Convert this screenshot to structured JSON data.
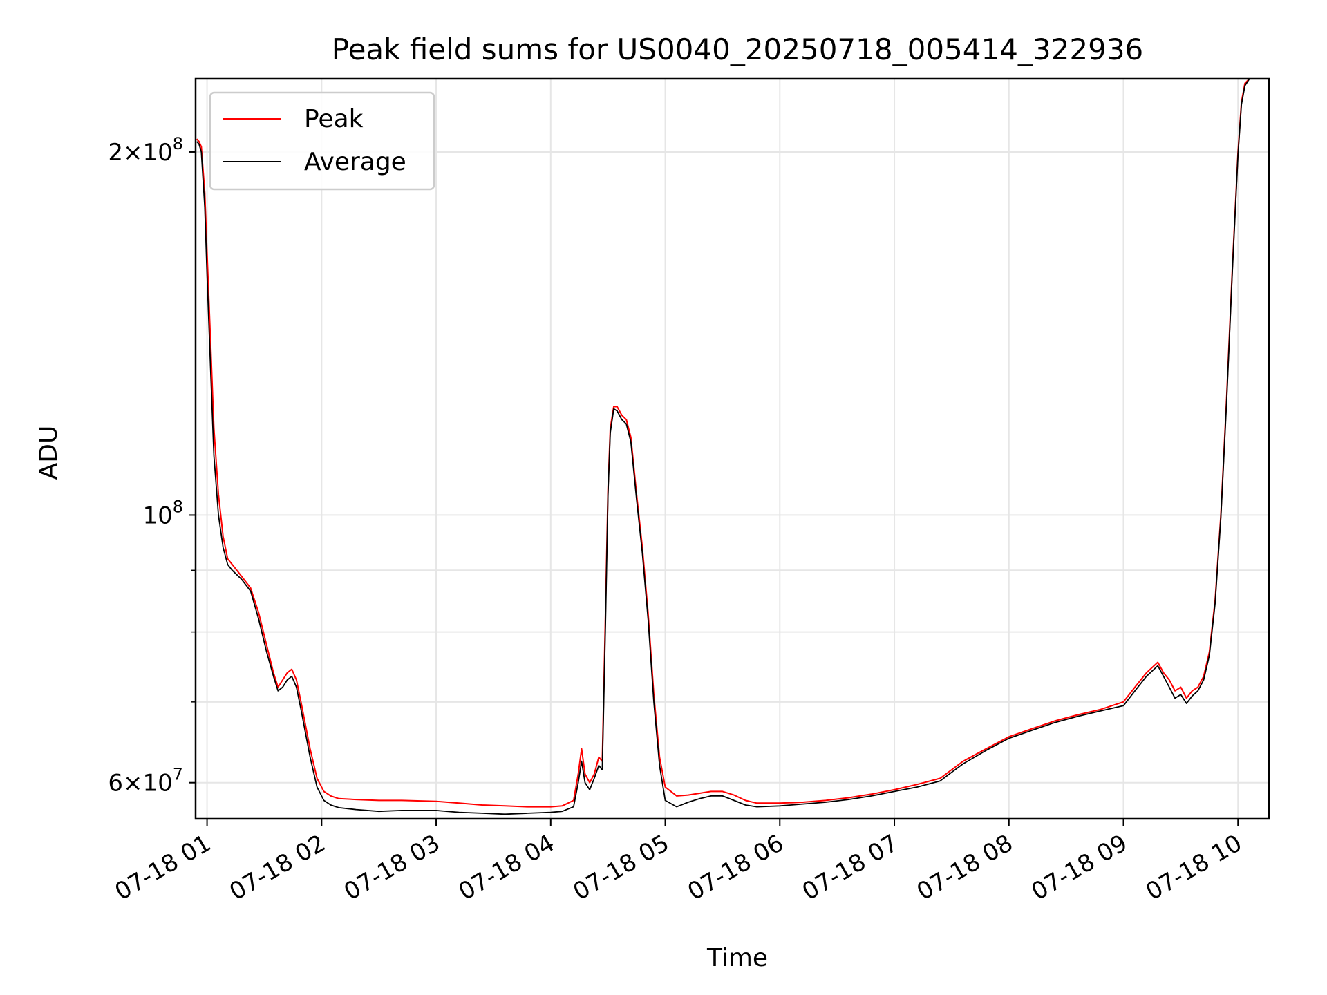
{
  "chart_data": {
    "type": "line",
    "title": "Peak field sums for US0040_20250718_005414_322936",
    "xlabel": "Time",
    "ylabel": "ADU",
    "yscale": "log",
    "grid": true,
    "legend_position": "upper-left",
    "x_unit": "hours (07-18)",
    "xlim": [
      0.9,
      10.27
    ],
    "ylim": [
      56000000,
      230000000
    ],
    "x_ticks": [
      {
        "value": 1,
        "label": "07-18 01"
      },
      {
        "value": 2,
        "label": "07-18 02"
      },
      {
        "value": 3,
        "label": "07-18 03"
      },
      {
        "value": 4,
        "label": "07-18 04"
      },
      {
        "value": 5,
        "label": "07-18 05"
      },
      {
        "value": 6,
        "label": "07-18 06"
      },
      {
        "value": 7,
        "label": "07-18 07"
      },
      {
        "value": 8,
        "label": "07-18 08"
      },
      {
        "value": 9,
        "label": "07-18 09"
      },
      {
        "value": 10,
        "label": "07-18 10"
      }
    ],
    "y_major_ticks": [
      {
        "value": 60000000,
        "mantissa": "6",
        "exponent": "7"
      },
      {
        "value": 100000000,
        "mantissa": "",
        "exponent": "8"
      },
      {
        "value": 200000000,
        "mantissa": "2",
        "exponent": "8"
      }
    ],
    "y_minor_ticks": [
      70000000,
      80000000,
      90000000
    ],
    "series": [
      {
        "name": "Peak",
        "color": "#ff0000",
        "x": [
          0.91,
          0.93,
          0.95,
          0.98,
          1.0,
          1.03,
          1.06,
          1.1,
          1.14,
          1.18,
          1.22,
          1.3,
          1.38,
          1.45,
          1.52,
          1.58,
          1.62,
          1.66,
          1.7,
          1.74,
          1.78,
          1.82,
          1.9,
          1.96,
          2.02,
          2.08,
          2.15,
          2.3,
          2.5,
          2.7,
          3.0,
          3.2,
          3.4,
          3.6,
          3.8,
          4.0,
          4.1,
          4.2,
          4.24,
          4.27,
          4.3,
          4.34,
          4.38,
          4.42,
          4.45,
          4.48,
          4.5,
          4.52,
          4.55,
          4.58,
          4.62,
          4.66,
          4.7,
          4.75,
          4.8,
          4.85,
          4.9,
          4.95,
          5.0,
          5.1,
          5.2,
          5.3,
          5.4,
          5.5,
          5.6,
          5.7,
          5.8,
          6.0,
          6.2,
          6.4,
          6.6,
          6.8,
          7.0,
          7.2,
          7.4,
          7.5,
          7.6,
          7.8,
          8.0,
          8.2,
          8.4,
          8.6,
          8.8,
          9.0,
          9.1,
          9.2,
          9.3,
          9.35,
          9.4,
          9.45,
          9.5,
          9.55,
          9.6,
          9.65,
          9.7,
          9.75,
          9.8,
          9.85,
          9.9,
          9.95,
          10.0,
          10.03,
          10.06,
          10.1
        ],
        "values": [
          205000000,
          204000000,
          202000000,
          185000000,
          165000000,
          140000000,
          118000000,
          104000000,
          96000000,
          92000000,
          91000000,
          89000000,
          87000000,
          83000000,
          78000000,
          74000000,
          72000000,
          73000000,
          74000000,
          74500000,
          73000000,
          70000000,
          64000000,
          60500000,
          59000000,
          58500000,
          58200000,
          58100000,
          58000000,
          58000000,
          57900000,
          57700000,
          57500000,
          57400000,
          57300000,
          57300000,
          57400000,
          58000000,
          61000000,
          64000000,
          61000000,
          60000000,
          61000000,
          63000000,
          62500000,
          85000000,
          105000000,
          118000000,
          123000000,
          123000000,
          121000000,
          120000000,
          116000000,
          104000000,
          94000000,
          83000000,
          71000000,
          63000000,
          59500000,
          58500000,
          58600000,
          58800000,
          59000000,
          59000000,
          58600000,
          58000000,
          57700000,
          57700000,
          57800000,
          58000000,
          58300000,
          58700000,
          59200000,
          59800000,
          60500000,
          61500000,
          62500000,
          64000000,
          65500000,
          66500000,
          67500000,
          68300000,
          69000000,
          70000000,
          72000000,
          74000000,
          75500000,
          74000000,
          73000000,
          71500000,
          72000000,
          70500000,
          71500000,
          72000000,
          73500000,
          77000000,
          85000000,
          100000000,
          125000000,
          160000000,
          200000000,
          220000000,
          228000000,
          230000000
        ]
      },
      {
        "name": "Average",
        "color": "#000000",
        "x": [
          0.91,
          0.93,
          0.95,
          0.98,
          1.0,
          1.03,
          1.06,
          1.1,
          1.14,
          1.18,
          1.22,
          1.3,
          1.38,
          1.45,
          1.52,
          1.58,
          1.62,
          1.66,
          1.7,
          1.74,
          1.78,
          1.82,
          1.9,
          1.96,
          2.02,
          2.08,
          2.15,
          2.3,
          2.5,
          2.7,
          3.0,
          3.2,
          3.4,
          3.6,
          3.8,
          4.0,
          4.1,
          4.2,
          4.24,
          4.27,
          4.3,
          4.34,
          4.38,
          4.42,
          4.45,
          4.48,
          4.5,
          4.52,
          4.55,
          4.58,
          4.62,
          4.66,
          4.7,
          4.75,
          4.8,
          4.85,
          4.9,
          4.95,
          5.0,
          5.1,
          5.2,
          5.3,
          5.4,
          5.5,
          5.6,
          5.7,
          5.8,
          6.0,
          6.2,
          6.4,
          6.6,
          6.8,
          7.0,
          7.2,
          7.4,
          7.5,
          7.6,
          7.8,
          8.0,
          8.2,
          8.4,
          8.6,
          8.8,
          9.0,
          9.1,
          9.2,
          9.3,
          9.35,
          9.4,
          9.45,
          9.5,
          9.55,
          9.6,
          9.65,
          9.7,
          9.75,
          9.8,
          9.85,
          9.9,
          9.95,
          10.0,
          10.03,
          10.06,
          10.1
        ],
        "values": [
          204000000,
          203000000,
          200000000,
          180000000,
          158000000,
          133000000,
          112000000,
          100000000,
          94000000,
          91000000,
          90000000,
          88500000,
          86500000,
          82000000,
          77000000,
          73500000,
          71500000,
          72000000,
          73000000,
          73500000,
          72000000,
          69000000,
          63000000,
          59500000,
          58000000,
          57500000,
          57200000,
          57000000,
          56800000,
          56900000,
          56900000,
          56700000,
          56600000,
          56500000,
          56600000,
          56700000,
          56800000,
          57300000,
          60000000,
          62500000,
          60000000,
          59200000,
          60500000,
          62000000,
          61500000,
          83000000,
          104000000,
          117000000,
          122500000,
          122000000,
          120000000,
          119000000,
          115000000,
          103000000,
          93000000,
          82000000,
          70000000,
          62000000,
          58000000,
          57300000,
          57800000,
          58200000,
          58500000,
          58500000,
          58000000,
          57500000,
          57300000,
          57400000,
          57600000,
          57800000,
          58100000,
          58500000,
          59000000,
          59500000,
          60200000,
          61200000,
          62200000,
          63800000,
          65300000,
          66300000,
          67300000,
          68100000,
          68800000,
          69500000,
          71500000,
          73500000,
          75000000,
          73500000,
          72000000,
          70500000,
          71000000,
          69800000,
          70800000,
          71500000,
          73000000,
          76500000,
          84500000,
          99500000,
          124000000,
          159000000,
          199000000,
          219000000,
          227000000,
          230000000
        ]
      }
    ]
  }
}
